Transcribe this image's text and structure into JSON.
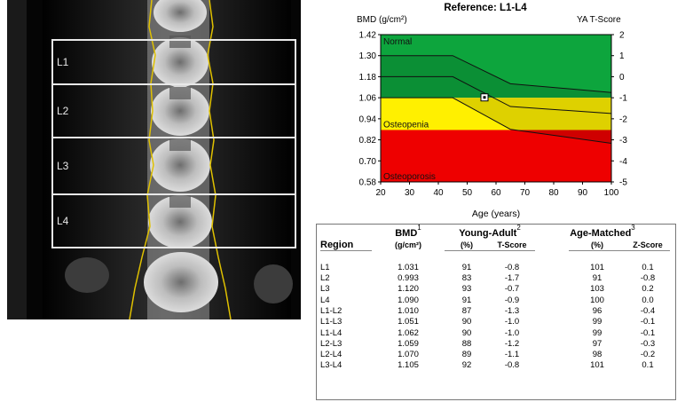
{
  "scan": {
    "roi_labels": [
      "L1",
      "L2",
      "L3",
      "L4"
    ]
  },
  "chart": {
    "title": "Reference: L1-L4",
    "y_left_label": "BMD (g/cm²)",
    "y_right_label": "YA T-Score",
    "x_label": "Age (years)",
    "zones": [
      "Normal",
      "Osteopenia",
      "Osteoporosis"
    ],
    "colors": {
      "normal": "#0da53d",
      "osteopenia": "#fff000",
      "osteoporosis": "#ee0000"
    }
  },
  "chart_data": {
    "type": "line",
    "title": "Reference: L1-L4",
    "xlabel": "Age (years)",
    "ylabel": "BMD (g/cm²)",
    "y2label": "YA T-Score",
    "xlim": [
      20,
      100
    ],
    "ylim": [
      0.58,
      1.42
    ],
    "x_ticks": [
      20,
      30,
      40,
      50,
      60,
      70,
      80,
      90,
      100
    ],
    "y_ticks": [
      0.58,
      0.7,
      0.82,
      0.94,
      1.06,
      1.18,
      1.3,
      1.42
    ],
    "y_tick_labels": [
      "0.58",
      "0.70",
      "0.82",
      "0.94",
      "1.06",
      "1.18",
      "1.30",
      "1.42"
    ],
    "y2_ticks": [
      -5,
      -4,
      -3,
      -2,
      -1,
      0,
      1,
      2
    ],
    "zone_thresholds": {
      "normal_min": 1.06,
      "osteopenia_min": 0.876
    },
    "reference_curves": {
      "upper": {
        "x": [
          20,
          45,
          65,
          100
        ],
        "y": [
          1.3,
          1.3,
          1.14,
          1.09
        ]
      },
      "mean": {
        "x": [
          20,
          45,
          65,
          100
        ],
        "y": [
          1.18,
          1.18,
          1.01,
          0.97
        ]
      },
      "lower": {
        "x": [
          20,
          45,
          65,
          100
        ],
        "y": [
          1.06,
          1.06,
          0.88,
          0.8
        ]
      }
    },
    "patient_point": {
      "x": 56,
      "y": 1.062
    }
  },
  "table": {
    "headers": {
      "region": "Region",
      "bmd": "BMD",
      "bmd_unit": "(g/cm²)",
      "young_adult": "Young-Adult",
      "age_matched": "Age-Matched",
      "pct": "(%)",
      "t_score": "T-Score",
      "z_score": "Z-Score",
      "sup1": "1",
      "sup2": "2",
      "sup3": "3"
    },
    "rows": [
      [
        "L1",
        "1.031",
        "91",
        "-0.8",
        "101",
        "0.1"
      ],
      [
        "L2",
        "0.993",
        "83",
        "-1.7",
        "91",
        "-0.8"
      ],
      [
        "L3",
        "1.120",
        "93",
        "-0.7",
        "103",
        "0.2"
      ],
      [
        "L4",
        "1.090",
        "91",
        "-0.9",
        "100",
        "0.0"
      ],
      [
        "L1-L2",
        "1.010",
        "87",
        "-1.3",
        "96",
        "-0.4"
      ],
      [
        "L1-L3",
        "1.051",
        "90",
        "-1.0",
        "99",
        "-0.1"
      ],
      [
        "L1-L4",
        "1.062",
        "90",
        "-1.0",
        "99",
        "-0.1"
      ],
      [
        "L2-L3",
        "1.059",
        "88",
        "-1.2",
        "97",
        "-0.3"
      ],
      [
        "L2-L4",
        "1.070",
        "89",
        "-1.1",
        "98",
        "-0.2"
      ],
      [
        "L3-L4",
        "1.105",
        "92",
        "-0.8",
        "101",
        "0.1"
      ]
    ]
  }
}
